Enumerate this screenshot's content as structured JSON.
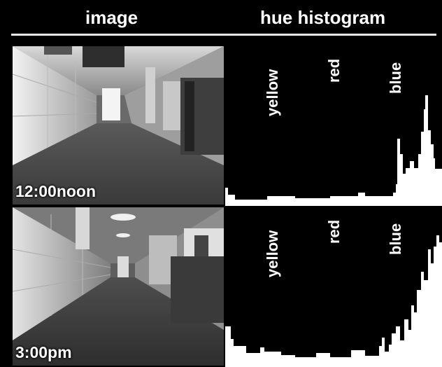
{
  "header": {
    "image_label": "image",
    "histogram_label": "hue histogram"
  },
  "hue_labels": [
    "yellow",
    "red",
    "blue"
  ],
  "rows": [
    {
      "caption": "12:00noon"
    },
    {
      "caption": "3:00pm"
    }
  ]
}
